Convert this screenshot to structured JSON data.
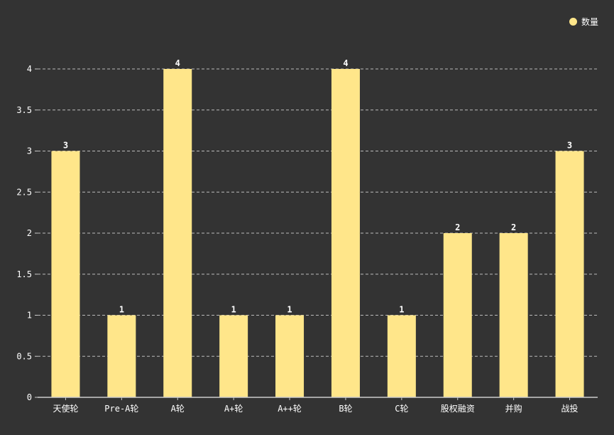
{
  "legend": {
    "label": "数量"
  },
  "colors": {
    "background": "#333333",
    "bar": "#ffe68a",
    "grid": "#bbbbbb",
    "axis": "#cccccc",
    "text": "#ffffff"
  },
  "chart_data": {
    "type": "bar",
    "title": "",
    "xlabel": "",
    "ylabel": "",
    "categories": [
      "天使轮",
      "Pre-A轮",
      "A轮",
      "A+轮",
      "A++轮",
      "B轮",
      "C轮",
      "股权融资",
      "并购",
      "战投"
    ],
    "series": [
      {
        "name": "数量",
        "values": [
          3,
          1,
          4,
          1,
          1,
          4,
          1,
          2,
          2,
          3
        ]
      }
    ],
    "ylim": [
      0,
      4
    ],
    "yticks": [
      "0",
      "0.5",
      "1",
      "1.5",
      "2",
      "2.5",
      "3",
      "3.5",
      "4"
    ],
    "grid": true,
    "legend_position": "top-right"
  }
}
